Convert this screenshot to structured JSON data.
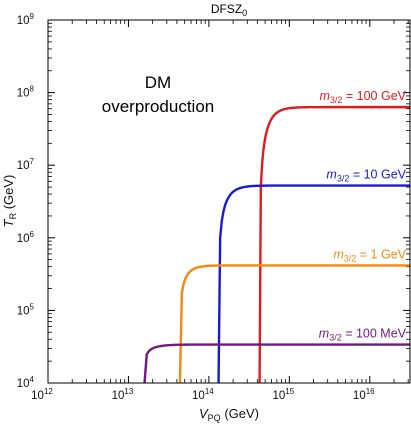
{
  "chart_data": {
    "type": "line",
    "title": "DFSZ",
    "title_subscript": "0",
    "xlabel": "V",
    "xlabel_subscript": "PQ",
    "xlabel_unit": "(GeV)",
    "ylabel": "T",
    "ylabel_subscript": "R",
    "ylabel_unit": "(GeV)",
    "x_scale": "log",
    "y_scale": "log",
    "xlim_exp": [
      12,
      16.5
    ],
    "ylim_exp": [
      4,
      9
    ],
    "x_tick_base": "10",
    "x_tick_exponents": [
      "12",
      "13",
      "14",
      "15",
      "16"
    ],
    "y_tick_base": "10",
    "y_tick_exponents": [
      "4",
      "5",
      "6",
      "7",
      "8",
      "9"
    ],
    "annotation_lines": [
      "DM",
      "overproduction"
    ],
    "series": [
      {
        "name_prefix": "m",
        "name_subscript": "3/2",
        "name_suffix": " = 100 GeV",
        "color": "#e01b1b",
        "vpq_start_exp": 14.63,
        "tr_plateau_exp": 7.8,
        "knee_exp": 14.9
      },
      {
        "name_prefix": "m",
        "name_subscript": "3/2",
        "name_suffix": " = 10 GeV",
        "color": "#1a1ad6",
        "vpq_start_exp": 14.12,
        "tr_plateau_exp": 6.72,
        "knee_exp": 14.4
      },
      {
        "name_prefix": "m",
        "name_subscript": "3/2",
        "name_suffix": " = 1 GeV",
        "color": "#f08a12",
        "vpq_start_exp": 13.64,
        "tr_plateau_exp": 5.62,
        "knee_exp": 13.9
      },
      {
        "name_prefix": "m",
        "name_subscript": "3/2",
        "name_suffix": " = 100 MeV",
        "color": "#6e1a7e",
        "vpq_start_exp": 13.2,
        "tr_plateau_exp": 4.53,
        "knee_exp": 13.55
      }
    ]
  }
}
